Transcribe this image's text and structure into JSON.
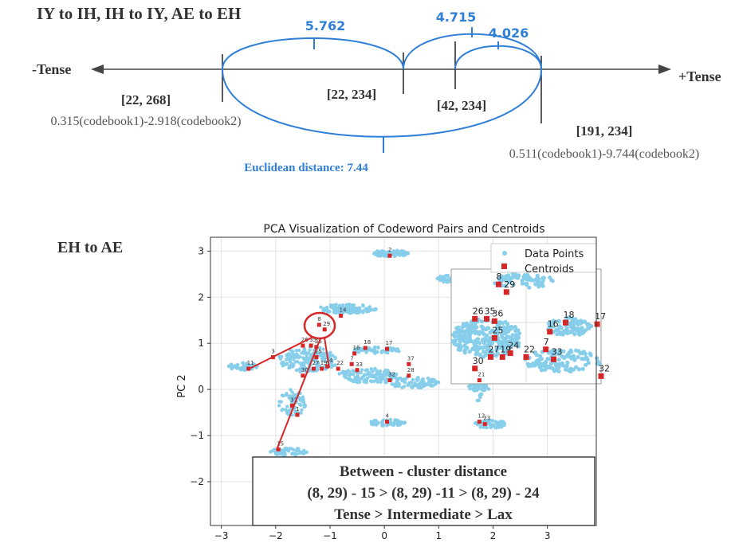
{
  "top": {
    "title": "IY to IH, IH to IY, AE to EH",
    "left_label": "-Tense",
    "right_label": "+Tense",
    "distances": [
      "5.762",
      "4.715",
      "4.026"
    ],
    "euclidean": "Euclidean distance: 7.44",
    "ranges": [
      "[22, 268]",
      "[22, 234]",
      "[42, 234]",
      "[191, 234]"
    ],
    "formula_left": "0.315(codebook1)-2.918(codebook2)",
    "formula_right": "0.511(codebook1)-9.744(codebook2)"
  },
  "bottom": {
    "section_label": "EH to AE",
    "legend": [
      "Data Points",
      "Centroids"
    ],
    "summary": {
      "title": "Between - cluster distance",
      "line2": "(8, 29) - 15 > (8, 29) -11 > (8, 29) - 24",
      "line3": "Tense > Intermediate > Lax"
    }
  },
  "chart_data": {
    "type": "scatter",
    "title": "PCA Visualization of Codeword Pairs and Centroids",
    "xlabel": "",
    "ylabel": "PC 2",
    "xlim": [
      -3.2,
      3.9
    ],
    "ylim": [
      -2.95,
      3.3
    ],
    "xticks": [
      -3,
      -2,
      -1,
      0,
      1,
      2,
      3
    ],
    "yticks": [
      -2,
      -1,
      0,
      1,
      2,
      3
    ],
    "grid": true,
    "legend_position": "top-right",
    "point_color": "#87ceeb",
    "centroid_color": "#d62728",
    "clusters": [
      {
        "cx": 0.1,
        "cy": 2.95,
        "rx": 0.35,
        "ry": 0.07,
        "n": 70
      },
      {
        "cx": -0.7,
        "cy": 1.75,
        "rx": 0.55,
        "ry": 0.1,
        "n": 110
      },
      {
        "cx": -2.6,
        "cy": 0.5,
        "rx": 0.28,
        "ry": 0.08,
        "n": 50
      },
      {
        "cx": -1.4,
        "cy": 0.65,
        "rx": 0.55,
        "ry": 0.28,
        "n": 170
      },
      {
        "cx": -0.3,
        "cy": 0.3,
        "rx": 0.55,
        "ry": 0.16,
        "n": 140
      },
      {
        "cx": -0.15,
        "cy": 0.85,
        "rx": 0.45,
        "ry": 0.07,
        "n": 60
      },
      {
        "cx": 0.5,
        "cy": 0.15,
        "rx": 0.5,
        "ry": 0.12,
        "n": 90
      },
      {
        "cx": -1.7,
        "cy": -0.3,
        "rx": 0.25,
        "ry": 0.3,
        "n": 70
      },
      {
        "cx": -1.75,
        "cy": -1.35,
        "rx": 0.35,
        "ry": 0.08,
        "n": 50
      },
      {
        "cx": 0.05,
        "cy": -0.72,
        "rx": 0.35,
        "ry": 0.07,
        "n": 55
      },
      {
        "cx": 1.95,
        "cy": -0.75,
        "rx": 0.3,
        "ry": 0.09,
        "n": 55
      },
      {
        "cx": 1.2,
        "cy": 2.4,
        "rx": 0.25,
        "ry": 0.08,
        "n": 40
      },
      {
        "cx": 1.75,
        "cy": 0.5,
        "rx": 0.15,
        "ry": 0.8,
        "n": 80
      },
      {
        "cx": 1.75,
        "cy": 0.05,
        "rx": 0.2,
        "ry": 0.08,
        "n": 25
      },
      {
        "cx": 3.2,
        "cy": 2.65,
        "rx": 0.55,
        "ry": 0.1,
        "n": 50
      }
    ],
    "centroids": [
      {
        "label": "2",
        "x": 0.1,
        "y": 2.9
      },
      {
        "label": "14",
        "x": -0.8,
        "y": 1.6
      },
      {
        "label": "8",
        "x": -1.2,
        "y": 1.4
      },
      {
        "label": "29",
        "x": -1.1,
        "y": 1.3
      },
      {
        "label": "3",
        "x": -2.05,
        "y": 0.7
      },
      {
        "label": "11",
        "x": -2.5,
        "y": 0.45
      },
      {
        "label": "35",
        "x": -1.35,
        "y": 0.95
      },
      {
        "label": "36",
        "x": -1.25,
        "y": 0.92
      },
      {
        "label": "26",
        "x": -1.5,
        "y": 0.95
      },
      {
        "label": "25",
        "x": -1.25,
        "y": 0.7
      },
      {
        "label": "18",
        "x": -0.35,
        "y": 0.9
      },
      {
        "label": "17",
        "x": 0.05,
        "y": 0.88
      },
      {
        "label": "16",
        "x": -0.55,
        "y": 0.78
      },
      {
        "label": "37",
        "x": 0.45,
        "y": 0.55
      },
      {
        "label": "7",
        "x": -0.6,
        "y": 0.55
      },
      {
        "label": "19",
        "x": -1.15,
        "y": 0.45
      },
      {
        "label": "24",
        "x": -1.05,
        "y": 0.5
      },
      {
        "label": "22",
        "x": -0.85,
        "y": 0.45
      },
      {
        "label": "27",
        "x": -1.3,
        "y": 0.45
      },
      {
        "label": "33",
        "x": -0.5,
        "y": 0.42
      },
      {
        "label": "30",
        "x": -1.5,
        "y": 0.3
      },
      {
        "label": "28",
        "x": 0.45,
        "y": 0.3
      },
      {
        "label": "32",
        "x": 0.1,
        "y": 0.2
      },
      {
        "label": "21",
        "x": 1.75,
        "y": 0.2
      },
      {
        "label": "31",
        "x": -1.7,
        "y": -0.35
      },
      {
        "label": "1",
        "x": -1.6,
        "y": -0.55
      },
      {
        "label": "4",
        "x": 0.05,
        "y": -0.7
      },
      {
        "label": "12",
        "x": 1.75,
        "y": -0.7
      },
      {
        "label": "23",
        "x": 1.85,
        "y": -0.75
      },
      {
        "label": "15",
        "x": -1.95,
        "y": -1.3
      }
    ]
  }
}
